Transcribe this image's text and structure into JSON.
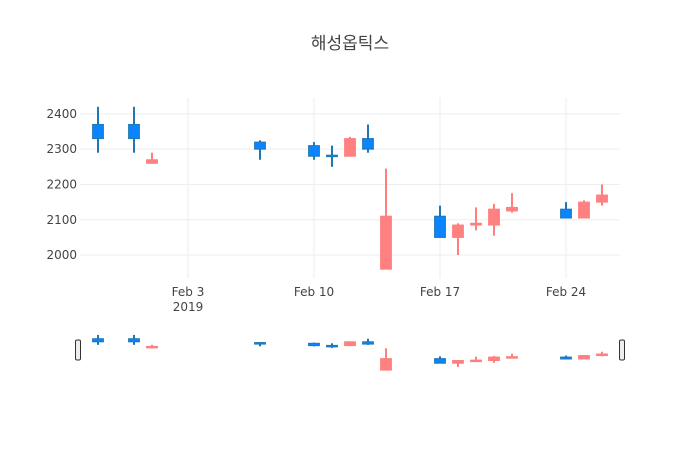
{
  "chart_data": {
    "type": "candlestick",
    "title": "해성옵틱스",
    "xlabel": "",
    "ylabel": "",
    "x_range": [
      "2019-01-28",
      "2019-02-27"
    ],
    "ylim": [
      1935,
      2445
    ],
    "y_ticks": [
      2000,
      2100,
      2200,
      2300,
      2400
    ],
    "x_ticks": [
      {
        "date": "2019-02-03",
        "label": "Feb 3",
        "sublabel": "2019"
      },
      {
        "date": "2019-02-10",
        "label": "Feb 10",
        "sublabel": ""
      },
      {
        "date": "2019-02-17",
        "label": "Feb 17",
        "sublabel": ""
      },
      {
        "date": "2019-02-24",
        "label": "Feb 24",
        "sublabel": ""
      }
    ],
    "grid": true,
    "legend": "none",
    "rangeslider": true,
    "colors": {
      "increasing": "#1f77b4",
      "decreasing": "#ff7f7f",
      "inc_fill": "#0a84ff",
      "dec_fill": "#ff8080",
      "grid": "#eeeeee"
    },
    "candles": [
      {
        "date": "2019-01-29",
        "open": 2330,
        "high": 2420,
        "low": 2290,
        "close": 2370
      },
      {
        "date": "2019-01-31",
        "open": 2330,
        "high": 2420,
        "low": 2290,
        "close": 2370
      },
      {
        "date": "2019-02-01",
        "open": 2270,
        "high": 2290,
        "low": 2260,
        "close": 2260
      },
      {
        "date": "2019-02-07",
        "open": 2300,
        "high": 2325,
        "low": 2270,
        "close": 2320
      },
      {
        "date": "2019-02-10",
        "open": 2280,
        "high": 2320,
        "low": 2270,
        "close": 2310
      },
      {
        "date": "2019-02-11",
        "open": 2280,
        "high": 2310,
        "low": 2250,
        "close": 2283
      },
      {
        "date": "2019-02-12",
        "open": 2330,
        "high": 2335,
        "low": 2280,
        "close": 2280
      },
      {
        "date": "2019-02-13",
        "open": 2300,
        "high": 2370,
        "low": 2290,
        "close": 2330
      },
      {
        "date": "2019-02-14",
        "open": 2110,
        "high": 2245,
        "low": 1960,
        "close": 1960
      },
      {
        "date": "2019-02-17",
        "open": 2050,
        "high": 2140,
        "low": 2050,
        "close": 2110
      },
      {
        "date": "2019-02-18",
        "open": 2085,
        "high": 2090,
        "low": 2000,
        "close": 2050
      },
      {
        "date": "2019-02-19",
        "open": 2090,
        "high": 2135,
        "low": 2070,
        "close": 2085
      },
      {
        "date": "2019-02-20",
        "open": 2130,
        "high": 2145,
        "low": 2055,
        "close": 2085
      },
      {
        "date": "2019-02-21",
        "open": 2135,
        "high": 2175,
        "low": 2120,
        "close": 2125
      },
      {
        "date": "2019-02-24",
        "open": 2105,
        "high": 2150,
        "low": 2105,
        "close": 2130
      },
      {
        "date": "2019-02-25",
        "open": 2150,
        "high": 2155,
        "low": 2105,
        "close": 2105
      },
      {
        "date": "2019-02-26",
        "open": 2170,
        "high": 2200,
        "low": 2140,
        "close": 2150
      }
    ]
  }
}
